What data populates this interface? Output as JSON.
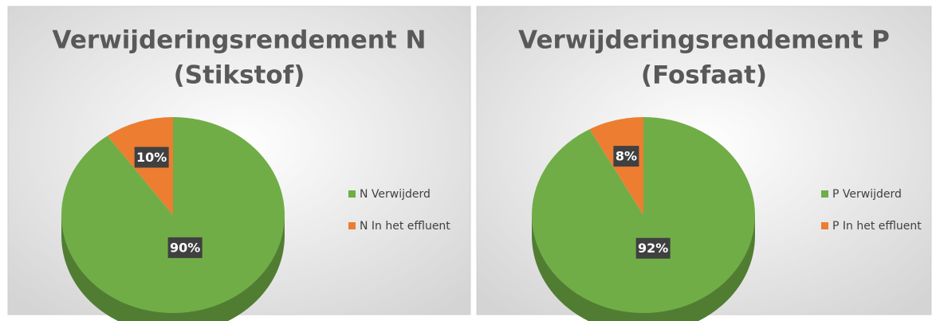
{
  "chart_data": [
    {
      "type": "pie",
      "title": [
        "Verwijderingsrendement N",
        "(Stikstof)"
      ],
      "categories": [
        "N Verwijderd",
        "N In het effluent"
      ],
      "values": [
        90,
        10
      ],
      "value_labels": [
        "90%",
        "10%"
      ],
      "colors": [
        "#70ad47",
        "#ed7d31"
      ],
      "legend": "right"
    },
    {
      "type": "pie",
      "title": [
        "Verwijderingsrendement P",
        "(Fosfaat)"
      ],
      "categories": [
        "P Verwijderd",
        "P In het effluent"
      ],
      "values": [
        92,
        8
      ],
      "value_labels": [
        "92%",
        "8%"
      ],
      "colors": [
        "#70ad47",
        "#ed7d31"
      ],
      "legend": "right"
    }
  ]
}
